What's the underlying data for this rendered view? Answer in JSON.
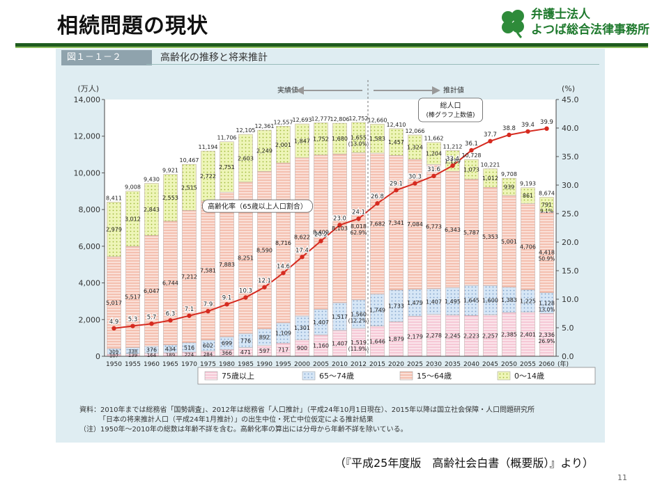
{
  "slide": {
    "title": "相続問題の現状",
    "logo_line1": "弁護士法人",
    "logo_line2": "よつば総合法律事務所",
    "caption": "（『平成25年度版　高齢社会白書（概要版）』より）",
    "page_number": "11"
  },
  "figure": {
    "label": "図１－１－２",
    "title": "高齢化の推移と将来推計"
  },
  "source": {
    "line1": "資料：2010年までは総務省「国勢調査」、2012年は総務省「人口推計」（平成24年10月1日現在）、2015年以降は国立社会保障・人口問題研究所",
    "line2": "「日本の将来推計人口（平成24年1月推計）」の出生中位・死亡中位仮定による推計結果",
    "line3": "（注）1950年～2010年の総数は年齢不詳を含む。高齢化率の算出には分母から年齢不詳を除いている。"
  },
  "colors": {
    "age75": "#f4c6d4",
    "age65": "#cfe0f4",
    "age15": "#f2b7a8",
    "age0": "#e6f0a8",
    "line": "#d62b20"
  },
  "chart_data": {
    "type": "bar",
    "stacked": true,
    "categories": [
      "1950",
      "1955",
      "1960",
      "1965",
      "1970",
      "1975",
      "1980",
      "1985",
      "1990",
      "1995",
      "2000",
      "2005",
      "2010",
      "2012",
      "2015",
      "2020",
      "2025",
      "2030",
      "2035",
      "2040",
      "2045",
      "2050",
      "2055",
      "2060"
    ],
    "x_unit": "(年)",
    "ylabel_left": "(万人)",
    "ylabel_right": "(%)",
    "ylim_left": [
      0,
      14000
    ],
    "ylim_right": [
      0,
      45
    ],
    "yticks_left": [
      "0",
      "2,000",
      "4,000",
      "6,000",
      "8,000",
      "10,000",
      "12,000",
      "14,000"
    ],
    "yticks_right": [
      "0.0",
      "5.0",
      "10.0",
      "15.0",
      "20.0",
      "25.0",
      "30.0",
      "35.0",
      "40.0",
      "45.0"
    ],
    "region_actual": "実績値",
    "region_forecast": "推計値",
    "callout_total": "総人口",
    "callout_total_sub": "(棒グラフ上数値)",
    "callout_rate": "高齢化率（65歳以上人口割合）",
    "series": [
      {
        "name": "75歳以上",
        "key": "age75",
        "values": [
          107,
          139,
          164,
          189,
          224,
          284,
          366,
          471,
          597,
          717,
          900,
          1160,
          1407,
          1519,
          1646,
          1879,
          2179,
          2278,
          2245,
          2223,
          2257,
          2385,
          2401,
          2336
        ],
        "labels": [
          "107",
          "139",
          "164",
          "189",
          "224",
          "284",
          "366",
          "471",
          "597",
          "717",
          "900",
          "1,160",
          "1,407",
          "1,519",
          "1,646",
          "1,879",
          "2,179",
          "2,278",
          "2,245",
          "2,223",
          "2,257",
          "2,385",
          "2,401",
          "2,336"
        ]
      },
      {
        "name": "65～74歳",
        "key": "age65",
        "values": [
          309,
          338,
          376,
          434,
          516,
          602,
          699,
          776,
          892,
          1109,
          1301,
          1407,
          1517,
          1560,
          1749,
          1733,
          1479,
          1407,
          1495,
          1645,
          1600,
          1383,
          1225,
          1128
        ],
        "labels": [
          "309",
          "338",
          "376",
          "434",
          "516",
          "602",
          "699",
          "776",
          "892",
          "1,109",
          "1,301",
          "1,407",
          "1,517",
          "1,560",
          "1,749",
          "1,733",
          "1,479",
          "1,407",
          "1,495",
          "1,645",
          "1,600",
          "1,383",
          "1,225",
          "1,128"
        ]
      },
      {
        "name": "15～64歳",
        "key": "age15",
        "values": [
          5017,
          5517,
          6047,
          6744,
          7212,
          7581,
          7883,
          8251,
          8590,
          8716,
          8622,
          8409,
          8103,
          8018,
          7682,
          7341,
          7084,
          6773,
          6343,
          5787,
          5353,
          5001,
          4706,
          4418
        ],
        "labels": [
          "5,017",
          "5,517",
          "6,047",
          "6,744",
          "7,212",
          "7,581",
          "7,883",
          "8,251",
          "8,590",
          "8,716",
          "8,622",
          "8,409",
          "8,103",
          "8,018",
          "7,682",
          "7,341",
          "7,084",
          "6,773",
          "6,343",
          "5,787",
          "5,353",
          "5,001",
          "4,706",
          "4,418"
        ]
      },
      {
        "name": "0～14歳",
        "key": "age0",
        "values": [
          2979,
          3012,
          2843,
          2553,
          2515,
          2722,
          2751,
          2603,
          2249,
          2001,
          1847,
          1752,
          1680,
          1655,
          1583,
          1457,
          1324,
          1204,
          1129,
          1073,
          1012,
          939,
          861,
          791
        ],
        "labels": [
          "2,979",
          "3,012",
          "2,843",
          "2,553",
          "2,515",
          "2,722",
          "2,751",
          "2,603",
          "2,249",
          "2,001",
          "1,847",
          "1,752",
          "1,680",
          "1,655",
          "1,583",
          "1,457",
          "1,324",
          "1,204",
          "1,129",
          "1,073",
          "1,012",
          "939",
          "861",
          "791"
        ]
      }
    ],
    "totals": [
      8411,
      9008,
      9430,
      9921,
      10467,
      11194,
      11706,
      12105,
      12361,
      12557,
      12693,
      12777,
      12806,
      12752,
      12660,
      12410,
      12066,
      11662,
      11212,
      10728,
      10221,
      9708,
      9193,
      8674
    ],
    "totals_labels": [
      "8,411",
      "9,008",
      "9,430",
      "9,921",
      "10,467",
      "11,194",
      "11,706",
      "12,105",
      "12,361",
      "12,557",
      "12,693",
      "12,777",
      "12,806",
      "12,752",
      "12,660",
      "12,410",
      "12,066",
      "11,662",
      "11,212",
      "10,728",
      "10,221",
      "9,708",
      "9,193",
      "8,674"
    ],
    "aging_rate": [
      4.9,
      5.3,
      5.7,
      6.3,
      7.1,
      7.9,
      9.1,
      10.3,
      12.1,
      14.6,
      17.4,
      20.2,
      23.0,
      24.1,
      26.8,
      29.1,
      30.3,
      31.6,
      33.4,
      36.1,
      37.7,
      38.8,
      39.4,
      39.9
    ],
    "aging_rate_labels": [
      "4.9",
      "5.3",
      "5.7",
      "6.3",
      "7.1",
      "7.9",
      "9.1",
      "10.3",
      "12.1",
      "14.6",
      "17.4",
      "20.2",
      "23.0",
      "24.1",
      "26.8",
      "29.1",
      "30.3",
      "31.6",
      "33.4",
      "36.1",
      "37.7",
      "38.8",
      "39.4",
      "39.9"
    ],
    "share_notes": [
      {
        "category": "2012",
        "series": "age75",
        "text": "(11.9%)"
      },
      {
        "category": "2012",
        "series": "age65",
        "text": "(12.2%)"
      },
      {
        "category": "2012",
        "series": "age15",
        "text": "62.9%"
      },
      {
        "category": "2012",
        "series": "age0",
        "text": "(13.0%)"
      },
      {
        "category": "2060",
        "series": "age75",
        "text": "26.9%"
      },
      {
        "category": "2060",
        "series": "age65",
        "text": "13.0%"
      },
      {
        "category": "2060",
        "series": "age15",
        "text": "50.9%"
      },
      {
        "category": "2060",
        "series": "age0",
        "text": "9.1%"
      }
    ],
    "legend_position": "bottom"
  }
}
